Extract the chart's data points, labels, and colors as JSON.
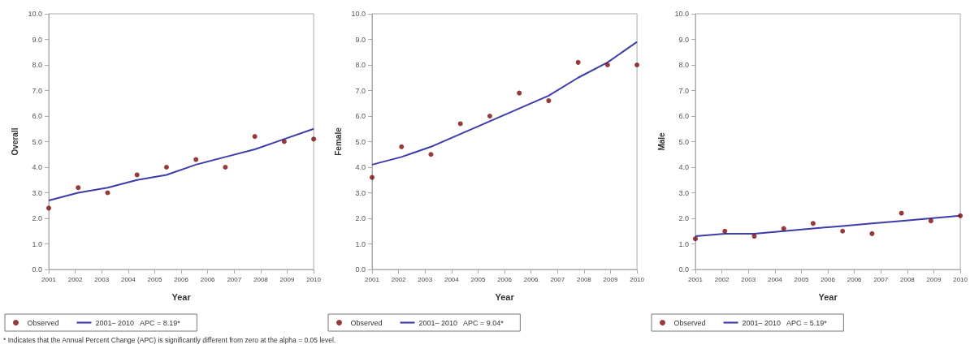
{
  "chart_data": [
    {
      "type": "scatter",
      "xlabel": "Year",
      "ylabel": "Overall",
      "x": [
        2001,
        2002,
        2003,
        2004,
        2005,
        2006,
        2007,
        2008,
        2009,
        2010
      ],
      "xlim": [
        2001,
        2010
      ],
      "xticks": [
        {
          "value": 2001,
          "label": "2001"
        },
        {
          "value": 2001.9,
          "label": "2002"
        },
        {
          "value": 2002.8,
          "label": "2003"
        },
        {
          "value": 2003.7,
          "label": "2004"
        },
        {
          "value": 2004.6,
          "label": "2005"
        },
        {
          "value": 2005.5,
          "label": "2006"
        },
        {
          "value": 2006.4,
          "label": "2006"
        },
        {
          "value": 2007.3,
          "label": "2007"
        },
        {
          "value": 2008.2,
          "label": "2008"
        },
        {
          "value": 2009.1,
          "label": "2009"
        },
        {
          "value": 2010,
          "label": "2010"
        }
      ],
      "ylim": [
        0,
        10
      ],
      "yticks": [
        {
          "value": 0,
          "label": "0.0"
        },
        {
          "value": 1,
          "label": "1.0"
        },
        {
          "value": 2,
          "label": "2.0"
        },
        {
          "value": 3,
          "label": "3.0"
        },
        {
          "value": 4,
          "label": "4.0"
        },
        {
          "value": 5,
          "label": "5.0"
        },
        {
          "value": 6,
          "label": "6.0"
        },
        {
          "value": 7,
          "label": "7.0"
        },
        {
          "value": 8,
          "label": "8.0"
        },
        {
          "value": 9,
          "label": "9.0"
        },
        {
          "value": 10,
          "label": "10.0"
        }
      ],
      "legend": "bottom",
      "series": [
        {
          "name": "Observed",
          "color": "#7a0a0a",
          "values": [
            2.4,
            3.2,
            3.0,
            3.7,
            4.0,
            4.3,
            4.0,
            5.2,
            5.0,
            5.1
          ]
        },
        {
          "name": "2001– 2010   APC = 8.19*",
          "type": "line",
          "color": "#3c3caa",
          "values": [
            2.7,
            3.0,
            3.2,
            3.5,
            3.7,
            4.1,
            4.4,
            4.7,
            5.1,
            5.5
          ]
        }
      ],
      "annotations": [
        "* Indicates that the Annual Percent Change (APC) is significantly different from zero at the alpha = 0.05 level."
      ]
    },
    {
      "type": "scatter",
      "xlabel": "Year",
      "ylabel": "Female",
      "x": [
        2001,
        2002,
        2003,
        2004,
        2005,
        2006,
        2007,
        2008,
        2009,
        2010
      ],
      "xlim": [
        2001,
        2010
      ],
      "xticks": [
        {
          "value": 2001,
          "label": "2001"
        },
        {
          "value": 2001.9,
          "label": "2002"
        },
        {
          "value": 2002.8,
          "label": "2003"
        },
        {
          "value": 2003.7,
          "label": "2004"
        },
        {
          "value": 2004.6,
          "label": "2005"
        },
        {
          "value": 2005.5,
          "label": "2006"
        },
        {
          "value": 2006.4,
          "label": "2006"
        },
        {
          "value": 2007.3,
          "label": "2007"
        },
        {
          "value": 2008.2,
          "label": "2008"
        },
        {
          "value": 2009.1,
          "label": "2009"
        },
        {
          "value": 2010,
          "label": "2010"
        }
      ],
      "ylim": [
        0,
        10
      ],
      "yticks": [
        {
          "value": 0,
          "label": "0.0"
        },
        {
          "value": 1,
          "label": "1.0"
        },
        {
          "value": 2,
          "label": "2.0"
        },
        {
          "value": 3,
          "label": "3.0"
        },
        {
          "value": 4,
          "label": "4.0"
        },
        {
          "value": 5,
          "label": "5.0"
        },
        {
          "value": 6,
          "label": "6.0"
        },
        {
          "value": 7,
          "label": "7.0"
        },
        {
          "value": 8,
          "label": "8.0"
        },
        {
          "value": 9,
          "label": "9.0"
        },
        {
          "value": 10,
          "label": "10.0"
        }
      ],
      "legend": "bottom",
      "series": [
        {
          "name": "Observed",
          "color": "#7a0a0a",
          "values": [
            3.6,
            4.8,
            4.5,
            5.7,
            6.0,
            6.9,
            6.6,
            8.1,
            8.0,
            8.0
          ]
        },
        {
          "name": "2001– 2010   APC = 9.04*",
          "type": "line",
          "color": "#3c3caa",
          "values": [
            4.1,
            4.4,
            4.8,
            5.3,
            5.8,
            6.3,
            6.8,
            7.5,
            8.1,
            8.9
          ]
        }
      ]
    },
    {
      "type": "scatter",
      "xlabel": "Year",
      "ylabel": "Male",
      "x": [
        2001,
        2002,
        2003,
        2004,
        2005,
        2006,
        2007,
        2008,
        2009,
        2010
      ],
      "xlim": [
        2001,
        2010
      ],
      "xticks": [
        {
          "value": 2001,
          "label": "2001"
        },
        {
          "value": 2001.9,
          "label": "2002"
        },
        {
          "value": 2002.8,
          "label": "2003"
        },
        {
          "value": 2003.7,
          "label": "2004"
        },
        {
          "value": 2004.6,
          "label": "2005"
        },
        {
          "value": 2005.5,
          "label": "2006"
        },
        {
          "value": 2006.4,
          "label": "2006"
        },
        {
          "value": 2007.3,
          "label": "2007"
        },
        {
          "value": 2008.2,
          "label": "2008"
        },
        {
          "value": 2009.1,
          "label": "2009"
        },
        {
          "value": 2010,
          "label": "2010"
        }
      ],
      "ylim": [
        0,
        10
      ],
      "yticks": [
        {
          "value": 0,
          "label": "0.0"
        },
        {
          "value": 1,
          "label": "1.0"
        },
        {
          "value": 2,
          "label": "2.0"
        },
        {
          "value": 3,
          "label": "3.0"
        },
        {
          "value": 4,
          "label": "4.0"
        },
        {
          "value": 5,
          "label": "5.0"
        },
        {
          "value": 6,
          "label": "6.0"
        },
        {
          "value": 7,
          "label": "7.0"
        },
        {
          "value": 8,
          "label": "8.0"
        },
        {
          "value": 9,
          "label": "9.0"
        },
        {
          "value": 10,
          "label": "10.0"
        }
      ],
      "legend": "bottom",
      "series": [
        {
          "name": "Observed",
          "color": "#7a0a0a",
          "values": [
            1.2,
            1.5,
            1.3,
            1.6,
            1.8,
            1.5,
            1.4,
            2.2,
            1.9,
            2.1
          ]
        },
        {
          "name": "2001– 2010   APC = 5.19*",
          "type": "line",
          "color": "#3c3caa",
          "values": [
            1.3,
            1.4,
            1.4,
            1.5,
            1.6,
            1.7,
            1.8,
            1.9,
            2.0,
            2.1
          ]
        }
      ]
    }
  ]
}
